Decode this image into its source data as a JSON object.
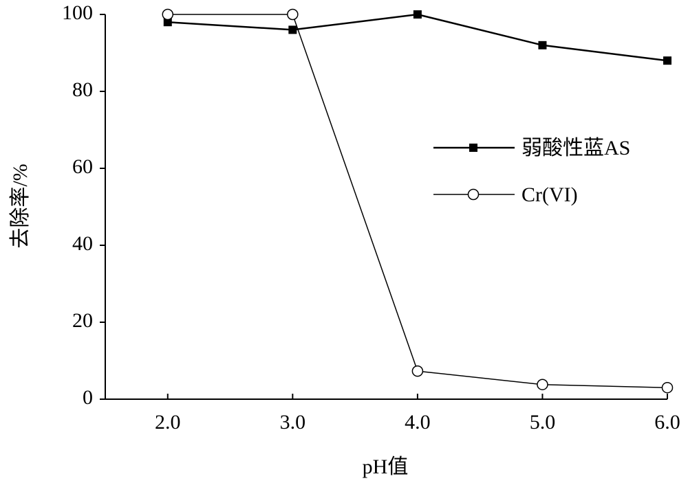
{
  "chart_data": {
    "type": "line",
    "x_label": "pH值",
    "y_label": "去除率/%",
    "x": [
      2,
      3,
      4,
      5,
      6
    ],
    "series": [
      {
        "name": "弱酸性蓝AS",
        "color": "#000000",
        "marker": "filled-square",
        "values": [
          98,
          96,
          100,
          92,
          88
        ]
      },
      {
        "name": "Cr(VI)",
        "color": "#000000",
        "marker": "open-circle",
        "values": [
          100,
          100,
          7.3,
          3.8,
          3
        ]
      }
    ],
    "xlim": [
      1.5,
      6
    ],
    "xticks": [
      {
        "value": 2,
        "label": "2.0"
      },
      {
        "value": 3,
        "label": "3.0"
      },
      {
        "value": 4,
        "label": "4.0"
      },
      {
        "value": 5,
        "label": "5.0"
      },
      {
        "value": 6,
        "label": "6.0"
      }
    ],
    "ylim": [
      0,
      100
    ],
    "yticks": [
      0,
      20,
      40,
      60,
      80,
      100
    ]
  }
}
